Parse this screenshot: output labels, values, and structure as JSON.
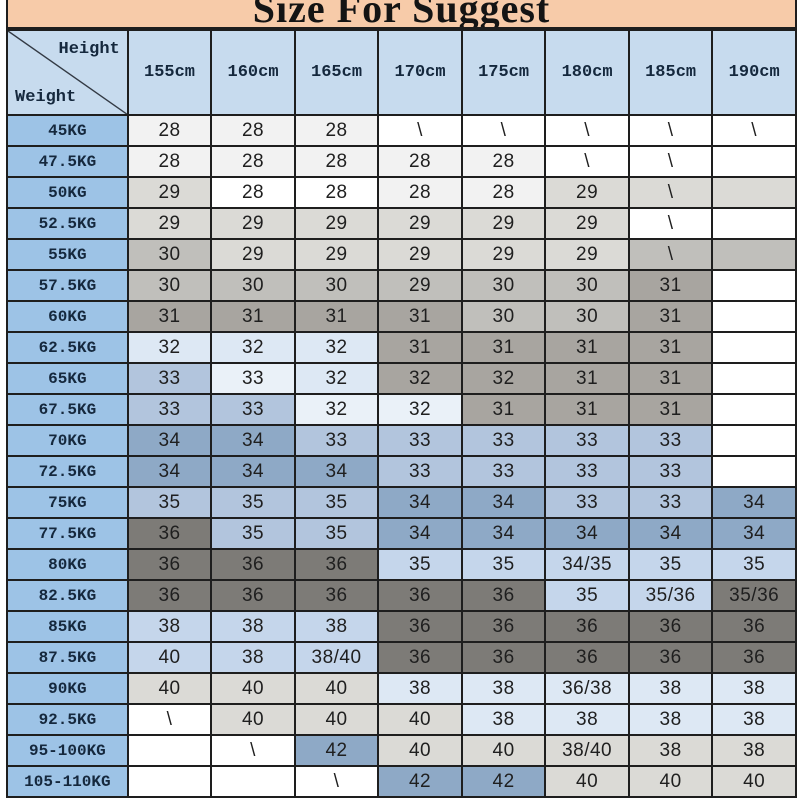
{
  "title": "Size For Suggest",
  "corner": {
    "top_label": "Height",
    "bottom_label": "Weight"
  },
  "columns": [
    "155cm",
    "160cm",
    "165cm",
    "170cm",
    "175cm",
    "180cm",
    "185cm",
    "190cm"
  ],
  "palette": {
    "title_bg": "#f7cba9",
    "header_bg": "#c7dbee",
    "weight_col_bg": "#9dc3e6",
    "border": "#1e1e1e",
    "W": "#ffffff",
    "F": "#f2f2f2",
    "G1": "#dbdad6",
    "G2": "#c0bfbb",
    "G3": "#a8a5a0",
    "G4": "#7d7b77",
    "B0": "#eaf1f8",
    "B1": "#dde8f4",
    "B2": "#c5d6eb",
    "B3": "#b2c5dd",
    "B4": "#8ea9c6"
  },
  "rows": [
    {
      "weight": "45KG",
      "values": [
        "28",
        "28",
        "28",
        "\\",
        "\\",
        "\\",
        "\\",
        "\\"
      ],
      "colors": [
        "F",
        "F",
        "F",
        "W",
        "W",
        "W",
        "W",
        "W"
      ]
    },
    {
      "weight": "47.5KG",
      "values": [
        "28",
        "28",
        "28",
        "28",
        "28",
        "\\",
        "\\",
        ""
      ],
      "colors": [
        "F",
        "F",
        "F",
        "F",
        "F",
        "W",
        "W",
        "W"
      ]
    },
    {
      "weight": "50KG",
      "values": [
        "29",
        "28",
        "28",
        "28",
        "28",
        "29",
        "\\",
        ""
      ],
      "colors": [
        "G1",
        "W",
        "W",
        "F",
        "F",
        "G1",
        "G1",
        "G1"
      ]
    },
    {
      "weight": "52.5KG",
      "values": [
        "29",
        "29",
        "29",
        "29",
        "29",
        "29",
        "\\",
        ""
      ],
      "colors": [
        "G1",
        "G1",
        "G1",
        "G1",
        "G1",
        "G1",
        "W",
        "W"
      ]
    },
    {
      "weight": "55KG",
      "values": [
        "30",
        "29",
        "29",
        "29",
        "29",
        "29",
        "\\",
        ""
      ],
      "colors": [
        "G2",
        "G1",
        "G1",
        "G1",
        "G1",
        "G1",
        "G2",
        "G2"
      ]
    },
    {
      "weight": "57.5KG",
      "values": [
        "30",
        "30",
        "30",
        "29",
        "30",
        "30",
        "31",
        ""
      ],
      "colors": [
        "G2",
        "G2",
        "G2",
        "G2",
        "G2",
        "G2",
        "G3",
        "W"
      ]
    },
    {
      "weight": "60KG",
      "values": [
        "31",
        "31",
        "31",
        "31",
        "30",
        "30",
        "31",
        ""
      ],
      "colors": [
        "G3",
        "G3",
        "G3",
        "G3",
        "G2",
        "G2",
        "G3",
        "W"
      ]
    },
    {
      "weight": "62.5KG",
      "values": [
        "32",
        "32",
        "32",
        "31",
        "31",
        "31",
        "31",
        ""
      ],
      "colors": [
        "B1",
        "B1",
        "B1",
        "G3",
        "G3",
        "G3",
        "G3",
        "W"
      ]
    },
    {
      "weight": "65KG",
      "values": [
        "33",
        "33",
        "32",
        "32",
        "32",
        "31",
        "31",
        ""
      ],
      "colors": [
        "B3",
        "B0",
        "B1",
        "G3",
        "G3",
        "G3",
        "G3",
        "W"
      ]
    },
    {
      "weight": "67.5KG",
      "values": [
        "33",
        "33",
        "32",
        "32",
        "31",
        "31",
        "31",
        ""
      ],
      "colors": [
        "B3",
        "B3",
        "B0",
        "B0",
        "G3",
        "G3",
        "G3",
        "W"
      ]
    },
    {
      "weight": "70KG",
      "values": [
        "34",
        "34",
        "33",
        "33",
        "33",
        "33",
        "33",
        ""
      ],
      "colors": [
        "B4",
        "B4",
        "B3",
        "B3",
        "B3",
        "B3",
        "B3",
        "W"
      ]
    },
    {
      "weight": "72.5KG",
      "values": [
        "34",
        "34",
        "34",
        "33",
        "33",
        "33",
        "33",
        ""
      ],
      "colors": [
        "B4",
        "B4",
        "B4",
        "B3",
        "B3",
        "B3",
        "B3",
        "W"
      ]
    },
    {
      "weight": "75KG",
      "values": [
        "35",
        "35",
        "35",
        "34",
        "34",
        "33",
        "33",
        "34"
      ],
      "colors": [
        "B3",
        "B3",
        "B3",
        "B4",
        "B4",
        "B3",
        "B3",
        "B4"
      ]
    },
    {
      "weight": "77.5KG",
      "values": [
        "36",
        "35",
        "35",
        "34",
        "34",
        "34",
        "34",
        "34"
      ],
      "colors": [
        "G4",
        "B3",
        "B3",
        "B4",
        "B4",
        "B4",
        "B4",
        "B4"
      ]
    },
    {
      "weight": "80KG",
      "values": [
        "36",
        "36",
        "36",
        "35",
        "35",
        "34/35",
        "35",
        "35"
      ],
      "colors": [
        "G4",
        "G4",
        "G4",
        "B2",
        "B2",
        "B2",
        "B2",
        "B2"
      ]
    },
    {
      "weight": "82.5KG",
      "values": [
        "36",
        "36",
        "36",
        "36",
        "36",
        "35",
        "35/36",
        "35/36"
      ],
      "colors": [
        "G4",
        "G4",
        "G4",
        "G4",
        "G4",
        "B2",
        "B2",
        "G4"
      ]
    },
    {
      "weight": "85KG",
      "values": [
        "38",
        "38",
        "38",
        "36",
        "36",
        "36",
        "36",
        "36"
      ],
      "colors": [
        "B2",
        "B2",
        "B2",
        "G4",
        "G4",
        "G4",
        "G4",
        "G4"
      ]
    },
    {
      "weight": "87.5KG",
      "values": [
        "40",
        "38",
        "38/40",
        "36",
        "36",
        "36",
        "36",
        "36"
      ],
      "colors": [
        "B2",
        "B2",
        "B2",
        "G4",
        "G4",
        "G4",
        "G4",
        "G4"
      ]
    },
    {
      "weight": "90KG",
      "values": [
        "40",
        "40",
        "40",
        "38",
        "38",
        "36/38",
        "38",
        "38"
      ],
      "colors": [
        "G1",
        "G1",
        "G1",
        "B1",
        "B1",
        "B1",
        "B1",
        "B1"
      ]
    },
    {
      "weight": "92.5KG",
      "values": [
        "\\",
        "40",
        "40",
        "40",
        "38",
        "38",
        "38",
        "38"
      ],
      "colors": [
        "W",
        "G1",
        "G1",
        "G1",
        "B1",
        "B1",
        "B1",
        "B1"
      ]
    },
    {
      "weight": "95-100KG",
      "values": [
        "",
        "\\",
        "42",
        "40",
        "40",
        "38/40",
        "38",
        "38"
      ],
      "colors": [
        "W",
        "W",
        "B4",
        "G1",
        "G1",
        "G1",
        "G1",
        "G1"
      ]
    },
    {
      "weight": "105-110KG",
      "values": [
        "",
        "",
        "\\",
        "42",
        "42",
        "40",
        "40",
        "40"
      ],
      "colors": [
        "W",
        "W",
        "W",
        "B4",
        "B4",
        "G1",
        "G1",
        "G1"
      ]
    }
  ]
}
